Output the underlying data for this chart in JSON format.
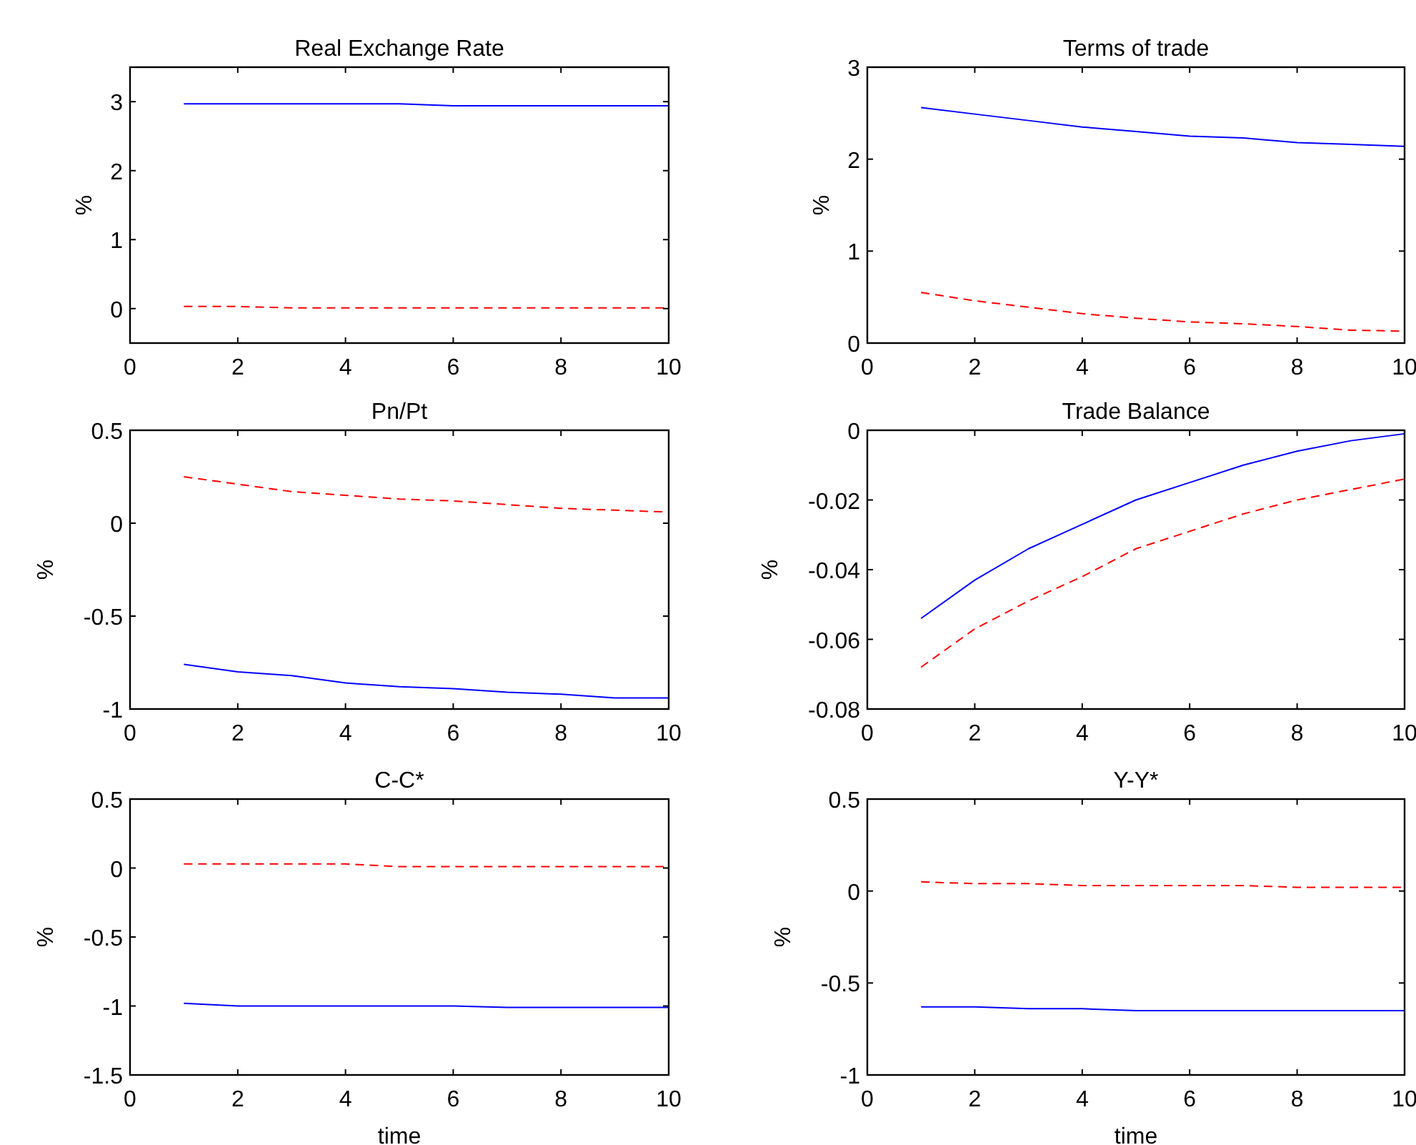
{
  "chart_data": [
    {
      "type": "line",
      "title": "Real Exchange Rate",
      "ylabel": "%",
      "x": [
        1,
        2,
        3,
        4,
        5,
        6,
        7,
        8,
        9,
        10
      ],
      "xlim": [
        0,
        10
      ],
      "xticks": [
        0,
        2,
        4,
        6,
        8,
        10
      ],
      "ylim": [
        -0.5,
        3.5
      ],
      "yticks": [
        0,
        1,
        2,
        3
      ],
      "series": [
        {
          "color": "#0000ff",
          "line_style": "solid",
          "values": [
            2.97,
            2.97,
            2.97,
            2.97,
            2.97,
            2.94,
            2.94,
            2.94,
            2.94,
            2.94
          ]
        },
        {
          "color": "#ff0000",
          "line_style": "dashed",
          "values": [
            0.03,
            0.03,
            0.01,
            0.01,
            0.01,
            0.01,
            0.01,
            0.01,
            0.01,
            0.01
          ]
        }
      ]
    },
    {
      "type": "line",
      "title": "Terms of trade",
      "ylabel": "%",
      "x": [
        1,
        2,
        3,
        4,
        5,
        6,
        7,
        8,
        9,
        10
      ],
      "xlim": [
        0,
        10
      ],
      "xticks": [
        0,
        2,
        4,
        6,
        8,
        10
      ],
      "ylim": [
        0,
        3
      ],
      "yticks": [
        0,
        1,
        2,
        3
      ],
      "series": [
        {
          "color": "#0000ff",
          "line_style": "solid",
          "values": [
            2.56,
            2.49,
            2.42,
            2.35,
            2.3,
            2.25,
            2.23,
            2.18,
            2.16,
            2.14
          ]
        },
        {
          "color": "#ff0000",
          "line_style": "dashed",
          "values": [
            0.55,
            0.46,
            0.39,
            0.32,
            0.27,
            0.23,
            0.21,
            0.18,
            0.14,
            0.13
          ]
        }
      ]
    },
    {
      "type": "line",
      "title": "Pn/Pt",
      "ylabel": "%",
      "x": [
        1,
        2,
        3,
        4,
        5,
        6,
        7,
        8,
        9,
        10
      ],
      "xlim": [
        0,
        10
      ],
      "xticks": [
        0,
        2,
        4,
        6,
        8,
        10
      ],
      "ylim": [
        -1,
        0.5
      ],
      "yticks": [
        -1,
        -0.5,
        0,
        0.5
      ],
      "series": [
        {
          "color": "#0000ff",
          "line_style": "solid",
          "values": [
            -0.76,
            -0.8,
            -0.82,
            -0.86,
            -0.88,
            -0.89,
            -0.91,
            -0.92,
            -0.94,
            -0.94
          ]
        },
        {
          "color": "#ff0000",
          "line_style": "dashed",
          "values": [
            0.25,
            0.21,
            0.17,
            0.15,
            0.13,
            0.12,
            0.1,
            0.08,
            0.07,
            0.06
          ]
        }
      ]
    },
    {
      "type": "line",
      "title": "Trade Balance",
      "ylabel": "%",
      "x": [
        1,
        2,
        3,
        4,
        5,
        6,
        7,
        8,
        9,
        10
      ],
      "xlim": [
        0,
        10
      ],
      "xticks": [
        0,
        2,
        4,
        6,
        8,
        10
      ],
      "ylim": [
        -0.08,
        0
      ],
      "yticks": [
        -0.08,
        -0.06,
        -0.04,
        -0.02,
        0
      ],
      "series": [
        {
          "color": "#0000ff",
          "line_style": "solid",
          "values": [
            -0.054,
            -0.043,
            -0.034,
            -0.027,
            -0.02,
            -0.015,
            -0.01,
            -0.006,
            -0.003,
            -0.001
          ]
        },
        {
          "color": "#ff0000",
          "line_style": "dashed",
          "values": [
            -0.068,
            -0.057,
            -0.049,
            -0.042,
            -0.034,
            -0.029,
            -0.024,
            -0.02,
            -0.017,
            -0.014
          ]
        }
      ]
    },
    {
      "type": "line",
      "title": "C-C*",
      "xlabel": "time",
      "ylabel": "%",
      "x": [
        1,
        2,
        3,
        4,
        5,
        6,
        7,
        8,
        9,
        10
      ],
      "xlim": [
        0,
        10
      ],
      "xticks": [
        0,
        2,
        4,
        6,
        8,
        10
      ],
      "ylim": [
        -1.5,
        0.5
      ],
      "yticks": [
        -1.5,
        -1,
        -0.5,
        0,
        0.5
      ],
      "series": [
        {
          "color": "#0000ff",
          "line_style": "solid",
          "values": [
            -0.98,
            -1,
            -1,
            -1,
            -1,
            -1,
            -1.01,
            -1.01,
            -1.01,
            -1.01
          ]
        },
        {
          "color": "#ff0000",
          "line_style": "dashed",
          "values": [
            0.03,
            0.03,
            0.03,
            0.03,
            0.01,
            0.01,
            0.01,
            0.01,
            0.01,
            0.01
          ]
        }
      ]
    },
    {
      "type": "line",
      "title": "Y-Y*",
      "xlabel": "time",
      "ylabel": "%",
      "x": [
        1,
        2,
        3,
        4,
        5,
        6,
        7,
        8,
        9,
        10
      ],
      "xlim": [
        0,
        10
      ],
      "xticks": [
        0,
        2,
        4,
        6,
        8,
        10
      ],
      "ylim": [
        -1,
        0.5
      ],
      "yticks": [
        -1,
        -0.5,
        0,
        0.5
      ],
      "series": [
        {
          "color": "#0000ff",
          "line_style": "solid",
          "values": [
            -0.63,
            -0.63,
            -0.64,
            -0.64,
            -0.65,
            -0.65,
            -0.65,
            -0.65,
            -0.65,
            -0.65
          ]
        },
        {
          "color": "#ff0000",
          "line_style": "dashed",
          "values": [
            0.05,
            0.04,
            0.04,
            0.03,
            0.03,
            0.03,
            0.03,
            0.02,
            0.02,
            0.02
          ]
        }
      ]
    }
  ]
}
